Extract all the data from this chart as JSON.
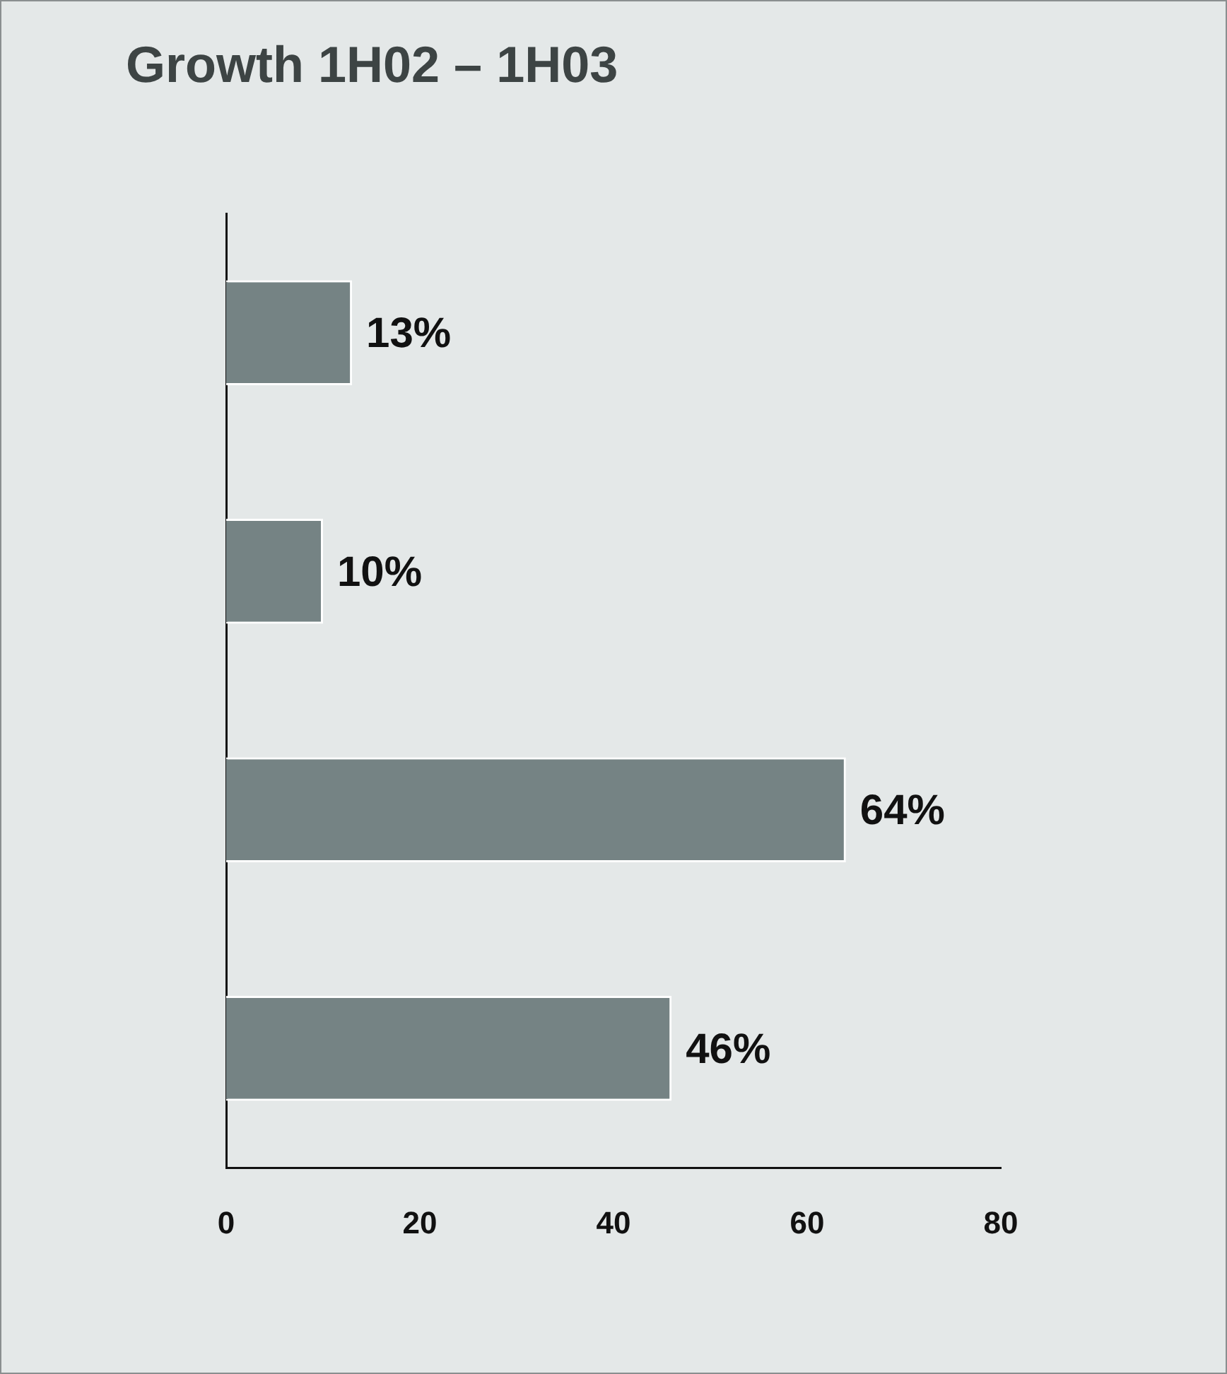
{
  "chart_data": {
    "type": "bar",
    "orientation": "horizontal",
    "title": "Growth 1H02 – 1H03",
    "categories": [
      null,
      null,
      null,
      null
    ],
    "values": [
      13,
      10,
      64,
      46
    ],
    "value_labels": [
      "13%",
      "10%",
      "64%",
      "46%"
    ],
    "color": "#758384",
    "xlim": [
      0,
      80
    ],
    "xticks": [
      0,
      20,
      40,
      60,
      80
    ],
    "tick_labels": "x"
  }
}
